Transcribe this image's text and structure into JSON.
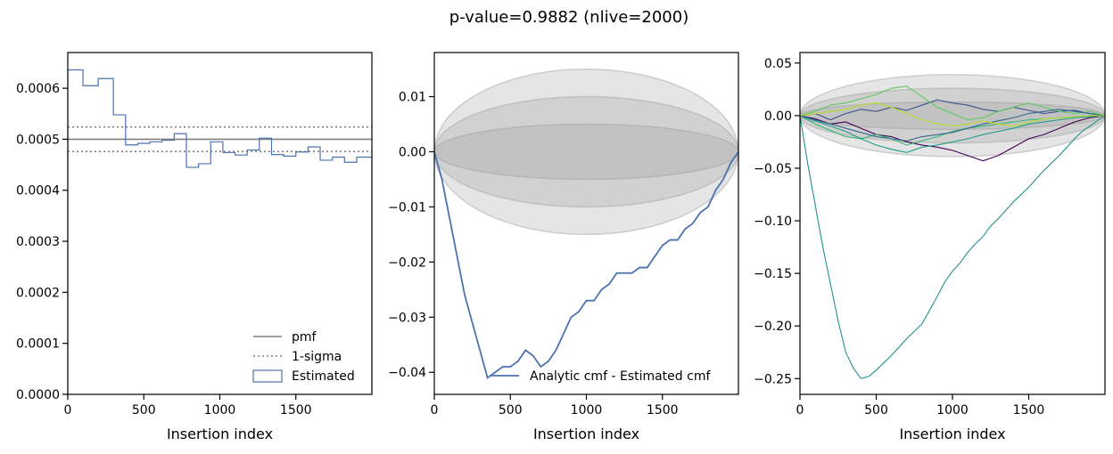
{
  "suptitle": "p-value=0.9882 (nlive=2000)",
  "colors": {
    "estimated": "#4c72b0",
    "pmf": "#808080",
    "sigma": "#808080",
    "band": "#999999",
    "walks": [
      "#440154",
      "#3b528b",
      "#21918c",
      "#5ec962",
      "#35b779",
      "#1f9e89",
      "#31688e",
      "#b5de2b"
    ]
  },
  "chart_data": [
    {
      "type": "line",
      "panel": "pmf",
      "xlabel": "Insertion index",
      "ylabel": "",
      "xlim": [
        0,
        2000
      ],
      "ylim": [
        0,
        0.00067
      ],
      "xticks": [
        0,
        500,
        1000,
        1500
      ],
      "yticks": [
        0.0,
        0.0001,
        0.0002,
        0.0003,
        0.0004,
        0.0005,
        0.0006
      ],
      "ytick_labels": [
        "0.0000",
        "0.0001",
        "0.0002",
        "0.0003",
        "0.0004",
        "0.0005",
        "0.0006"
      ],
      "pmf": 0.0005,
      "sigma": [
        0.000476,
        0.000524
      ],
      "histogram": {
        "edges": [
          0,
          100,
          200,
          300,
          380,
          460,
          540,
          620,
          700,
          780,
          860,
          940,
          1020,
          1100,
          1180,
          1260,
          1340,
          1420,
          1500,
          1580,
          1660,
          1740,
          1820,
          1900,
          2000
        ],
        "values": [
          0.000636,
          0.000605,
          0.000619,
          0.000548,
          0.000489,
          0.000492,
          0.000495,
          0.000498,
          0.000511,
          0.000445,
          0.000452,
          0.000495,
          0.000474,
          0.000469,
          0.000479,
          0.000502,
          0.00047,
          0.000467,
          0.000475,
          0.000485,
          0.000459,
          0.000465,
          0.000455,
          0.000465
        ]
      },
      "legend": {
        "position": "lower-right",
        "entries": [
          "pmf",
          "1-sigma",
          "Estimated"
        ]
      }
    },
    {
      "type": "line",
      "panel": "cmf-difference",
      "xlabel": "Insertion index",
      "ylabel": "",
      "xlim": [
        0,
        2000
      ],
      "ylim": [
        -0.044,
        0.018
      ],
      "xticks": [
        0,
        500,
        1000,
        1500
      ],
      "yticks": [
        -0.04,
        -0.03,
        -0.02,
        -0.01,
        0.0,
        0.01
      ],
      "ytick_labels": [
        "−0.04",
        "−0.03",
        "−0.02",
        "−0.01",
        "0.00",
        "0.01"
      ],
      "bands": [
        0.005,
        0.01,
        0.015
      ],
      "series": [
        {
          "name": "Analytic cmf - Estimated cmf",
          "x": [
            0,
            50,
            100,
            150,
            200,
            250,
            300,
            350,
            400,
            450,
            500,
            550,
            600,
            650,
            700,
            750,
            800,
            850,
            900,
            950,
            1000,
            1050,
            1100,
            1150,
            1200,
            1250,
            1300,
            1350,
            1400,
            1450,
            1500,
            1550,
            1600,
            1650,
            1700,
            1750,
            1800,
            1850,
            1900,
            1950,
            2000
          ],
          "y": [
            0.0,
            -0.005,
            -0.012,
            -0.019,
            -0.026,
            -0.031,
            -0.036,
            -0.041,
            -0.04,
            -0.039,
            -0.039,
            -0.038,
            -0.036,
            -0.037,
            -0.039,
            -0.038,
            -0.036,
            -0.033,
            -0.03,
            -0.029,
            -0.027,
            -0.027,
            -0.025,
            -0.024,
            -0.022,
            -0.022,
            -0.022,
            -0.021,
            -0.021,
            -0.019,
            -0.017,
            -0.016,
            -0.016,
            -0.014,
            -0.013,
            -0.011,
            -0.01,
            -0.007,
            -0.005,
            -0.002,
            0.0
          ]
        }
      ],
      "legend": {
        "position": "lower-right",
        "entries": [
          "Analytic cmf - Estimated cmf"
        ]
      }
    },
    {
      "type": "line",
      "panel": "random-walks",
      "xlabel": "Insertion index",
      "ylabel": "",
      "xlim": [
        0,
        2000
      ],
      "ylim": [
        -0.265,
        0.06
      ],
      "xticks": [
        0,
        500,
        1000,
        1500
      ],
      "yticks": [
        -0.25,
        -0.2,
        -0.15,
        -0.1,
        -0.05,
        0.0,
        0.05
      ],
      "ytick_labels": [
        "−0.25",
        "−0.20",
        "−0.15",
        "−0.10",
        "−0.05",
        "0.00",
        "0.05"
      ],
      "bands": [
        0.013,
        0.026,
        0.039
      ],
      "series": [
        {
          "x": [
            0,
            100,
            200,
            300,
            400,
            500,
            600,
            700,
            800,
            900,
            1000,
            1100,
            1200,
            1300,
            1400,
            1500,
            1600,
            1700,
            1800,
            1900,
            2000
          ],
          "y": [
            0.0,
            -0.003,
            -0.008,
            -0.006,
            -0.012,
            -0.018,
            -0.02,
            -0.025,
            -0.028,
            -0.03,
            -0.033,
            -0.038,
            -0.043,
            -0.038,
            -0.03,
            -0.022,
            -0.018,
            -0.012,
            -0.006,
            -0.002,
            0.0
          ]
        },
        {
          "x": [
            0,
            100,
            200,
            300,
            400,
            500,
            600,
            700,
            800,
            900,
            1000,
            1100,
            1200,
            1300,
            1400,
            1500,
            1600,
            1700,
            1800,
            1900,
            2000
          ],
          "y": [
            0.0,
            0.002,
            -0.004,
            0.002,
            0.006,
            0.004,
            0.008,
            0.005,
            0.01,
            0.015,
            0.012,
            0.01,
            0.006,
            0.004,
            0.008,
            0.005,
            0.002,
            0.004,
            0.005,
            0.002,
            0.0
          ]
        },
        {
          "x": [
            0,
            50,
            100,
            150,
            200,
            250,
            300,
            350,
            400,
            450,
            500,
            550,
            600,
            650,
            700,
            750,
            800,
            850,
            900,
            950,
            1000,
            1050,
            1100,
            1150,
            1200,
            1250,
            1300,
            1350,
            1400,
            1450,
            1500,
            1550,
            1600,
            1650,
            1700,
            1750,
            1800,
            1850,
            1900,
            1950,
            2000
          ],
          "y": [
            0.0,
            -0.045,
            -0.085,
            -0.125,
            -0.16,
            -0.195,
            -0.225,
            -0.24,
            -0.25,
            -0.248,
            -0.242,
            -0.235,
            -0.228,
            -0.22,
            -0.212,
            -0.205,
            -0.198,
            -0.185,
            -0.172,
            -0.158,
            -0.148,
            -0.14,
            -0.13,
            -0.122,
            -0.115,
            -0.105,
            -0.098,
            -0.09,
            -0.082,
            -0.075,
            -0.068,
            -0.06,
            -0.052,
            -0.045,
            -0.038,
            -0.03,
            -0.022,
            -0.015,
            -0.01,
            -0.005,
            0.0
          ]
        },
        {
          "x": [
            0,
            100,
            200,
            300,
            400,
            500,
            600,
            700,
            800,
            900,
            1000,
            1100,
            1200,
            1300,
            1400,
            1500,
            1600,
            1700,
            1800,
            1900,
            2000
          ],
          "y": [
            0.0,
            0.004,
            0.01,
            0.012,
            0.016,
            0.02,
            0.026,
            0.028,
            0.018,
            0.008,
            0.002,
            -0.004,
            -0.002,
            0.004,
            0.008,
            0.012,
            0.008,
            0.004,
            0.002,
            0.004,
            0.0
          ]
        },
        {
          "x": [
            0,
            100,
            200,
            300,
            400,
            500,
            600,
            700,
            800,
            900,
            1000,
            1100,
            1200,
            1300,
            1400,
            1500,
            1600,
            1700,
            1800,
            1900,
            2000
          ],
          "y": [
            0.0,
            -0.008,
            -0.014,
            -0.02,
            -0.022,
            -0.018,
            -0.022,
            -0.028,
            -0.024,
            -0.02,
            -0.015,
            -0.012,
            -0.01,
            -0.008,
            -0.006,
            -0.004,
            -0.003,
            -0.002,
            -0.001,
            0.0,
            0.0
          ]
        },
        {
          "x": [
            0,
            100,
            200,
            300,
            400,
            500,
            600,
            700,
            800,
            900,
            1000,
            1100,
            1200,
            1300,
            1400,
            1500,
            1600,
            1700,
            1800,
            1900,
            2000
          ],
          "y": [
            0.0,
            -0.005,
            -0.01,
            -0.015,
            -0.022,
            -0.028,
            -0.032,
            -0.035,
            -0.03,
            -0.028,
            -0.025,
            -0.022,
            -0.018,
            -0.015,
            -0.012,
            -0.008,
            -0.006,
            -0.004,
            -0.002,
            -0.001,
            0.0
          ]
        },
        {
          "x": [
            0,
            100,
            200,
            300,
            400,
            500,
            600,
            700,
            800,
            900,
            1000,
            1100,
            1200,
            1300,
            1400,
            1500,
            1600,
            1700,
            1800,
            1900,
            2000
          ],
          "y": [
            0.0,
            -0.004,
            -0.008,
            -0.012,
            -0.016,
            -0.02,
            -0.022,
            -0.024,
            -0.02,
            -0.018,
            -0.016,
            -0.012,
            -0.008,
            -0.005,
            -0.002,
            0.002,
            0.004,
            0.006,
            0.004,
            0.002,
            0.0
          ]
        },
        {
          "x": [
            0,
            100,
            200,
            300,
            400,
            500,
            600,
            700,
            800,
            900,
            1000,
            1100,
            1200,
            1300,
            1400,
            1500,
            1600,
            1700,
            1800,
            1900,
            2000
          ],
          "y": [
            0.0,
            0.002,
            0.004,
            0.006,
            0.01,
            0.012,
            0.008,
            0.002,
            -0.004,
            -0.008,
            -0.01,
            -0.008,
            -0.005,
            -0.008,
            -0.01,
            -0.006,
            -0.003,
            -0.002,
            -0.001,
            0.0,
            0.0
          ]
        }
      ]
    }
  ]
}
